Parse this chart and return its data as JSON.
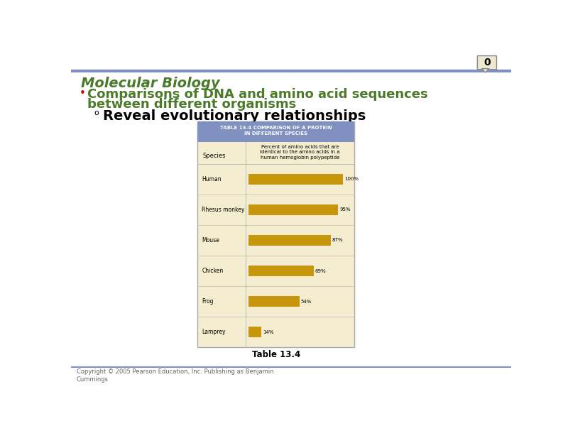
{
  "title": "Molecular Biology",
  "bullet1_line1": "Comparisons of DNA and amino acid sequences",
  "bullet1_line2": "between different organisms",
  "sub_bullet1": "Reveal evolutionary relationships",
  "table_title_line1": "TABLE 13.4 COMPARISON OF A PROTEIN",
  "table_title_line2": "IN DIFFERENT SPECIES",
  "table_col_header": "Percent of amino acids that are\nidentical to the amino acids in a\nhuman hemoglobin polypeptide",
  "table_col_label": "Species",
  "species": [
    "Human",
    "Rhesus monkey",
    "Mouse",
    "Chicken",
    "Frog",
    "Lamprey"
  ],
  "values": [
    100,
    95,
    87,
    69,
    54,
    14
  ],
  "bar_color": "#C8960C",
  "table_bg": "#F5EDD0",
  "table_header_bg": "#8090C0",
  "top_line_color": "#8090C0",
  "bottom_line_color": "#8090C0",
  "title_color": "#4A7A2A",
  "bullet_color": "#4A7A2A",
  "sub_bullet_color": "#000000",
  "footer_text": "Copyright © 2005 Pearson Education, Inc. Publishing as Benjamin\nCummings",
  "table_caption": "Table 13.4",
  "badge_text": "0",
  "background_color": "#FFFFFF",
  "title_fontsize": 14,
  "bullet_fontsize": 13,
  "sub_bullet_fontsize": 14
}
